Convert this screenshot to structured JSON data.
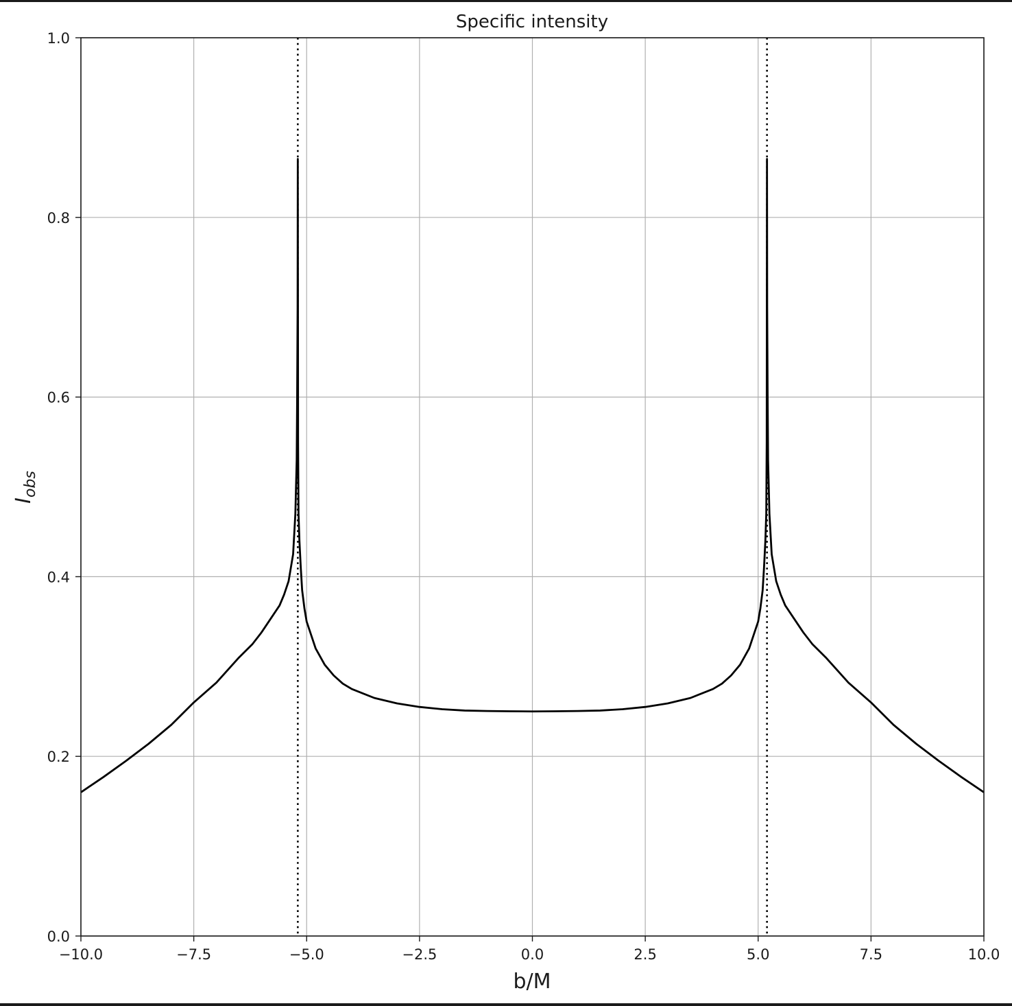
{
  "chart_data": {
    "type": "line",
    "title": "Specific intensity",
    "xlabel": "b/M",
    "ylabel": {
      "main": "I",
      "subscript": "obs"
    },
    "xlim": [
      -10,
      10
    ],
    "ylim": [
      0,
      1
    ],
    "xticks": [
      -10,
      -7.5,
      -5,
      -2.5,
      0,
      2.5,
      5,
      7.5,
      10
    ],
    "xtick_labels": [
      "−10.0",
      "−7.5",
      "−5.0",
      "−2.5",
      "0.0",
      "2.5",
      "5.0",
      "7.5",
      "10.0"
    ],
    "yticks": [
      0,
      0.2,
      0.4,
      0.6,
      0.8,
      1.0
    ],
    "ytick_labels": [
      "0.0",
      "0.2",
      "0.4",
      "0.6",
      "0.8",
      "1.0"
    ],
    "grid": true,
    "vlines": [
      {
        "x": -5.196,
        "style": "dotted"
      },
      {
        "x": 5.196,
        "style": "dotted"
      }
    ],
    "series": [
      {
        "color": "#000000",
        "x": [
          -10.0,
          -9.5,
          -9.0,
          -8.5,
          -8.0,
          -7.5,
          -7.0,
          -6.5,
          -6.2,
          -6.0,
          -5.8,
          -5.6,
          -5.5,
          -5.4,
          -5.3,
          -5.25,
          -5.22,
          -5.21,
          -5.2,
          -5.196,
          -5.19,
          -5.18,
          -5.16,
          -5.13,
          -5.1,
          -5.05,
          -5.0,
          -4.9,
          -4.8,
          -4.6,
          -4.4,
          -4.2,
          -4.0,
          -3.5,
          -3.0,
          -2.5,
          -2.0,
          -1.5,
          -1.0,
          -0.5,
          0.0,
          0.5,
          1.0,
          1.5,
          2.0,
          2.5,
          3.0,
          3.5,
          4.0,
          4.2,
          4.4,
          4.6,
          4.8,
          4.9,
          5.0,
          5.05,
          5.1,
          5.13,
          5.16,
          5.18,
          5.19,
          5.196,
          5.2,
          5.21,
          5.22,
          5.25,
          5.3,
          5.4,
          5.5,
          5.6,
          5.8,
          6.0,
          6.2,
          6.5,
          7.0,
          7.5,
          8.0,
          8.5,
          9.0,
          9.5,
          10.0
        ],
        "y": [
          0.16,
          0.177,
          0.195,
          0.214,
          0.235,
          0.26,
          0.282,
          0.31,
          0.325,
          0.338,
          0.353,
          0.368,
          0.38,
          0.395,
          0.425,
          0.47,
          0.53,
          0.6,
          0.7,
          0.865,
          0.55,
          0.47,
          0.44,
          0.41,
          0.385,
          0.365,
          0.35,
          0.335,
          0.32,
          0.302,
          0.29,
          0.281,
          0.275,
          0.265,
          0.259,
          0.255,
          0.2525,
          0.251,
          0.2505,
          0.2502,
          0.25,
          0.2502,
          0.2505,
          0.251,
          0.2525,
          0.255,
          0.259,
          0.265,
          0.275,
          0.281,
          0.29,
          0.302,
          0.32,
          0.335,
          0.35,
          0.365,
          0.385,
          0.41,
          0.44,
          0.47,
          0.55,
          0.865,
          0.7,
          0.6,
          0.53,
          0.47,
          0.425,
          0.395,
          0.38,
          0.368,
          0.353,
          0.338,
          0.325,
          0.31,
          0.282,
          0.26,
          0.235,
          0.214,
          0.195,
          0.177,
          0.16
        ]
      }
    ]
  }
}
